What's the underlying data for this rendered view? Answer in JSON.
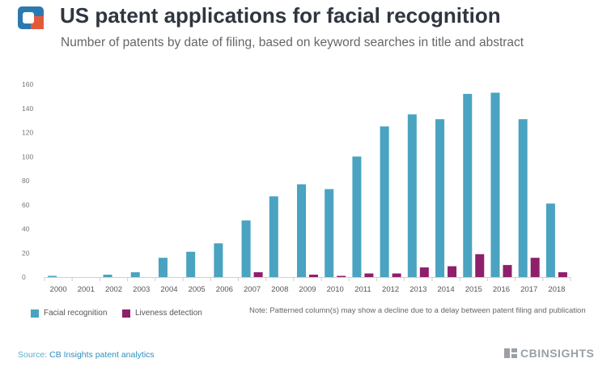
{
  "header": {
    "title": "US patent applications for facial recognition",
    "subtitle": "Number of patents by date of filing, based on keyword searches in title and abstract"
  },
  "chart_data": {
    "type": "bar",
    "title": "US patent applications for facial recognition",
    "subtitle": "Number of patents by date of filing, based on keyword searches in title and abstract",
    "xlabel": "",
    "ylabel": "",
    "ylim": [
      0,
      160
    ],
    "yticks": [
      0,
      20,
      40,
      60,
      80,
      100,
      120,
      140,
      160
    ],
    "grid": false,
    "categories": [
      "2000",
      "2001",
      "2002",
      "2003",
      "2004",
      "2005",
      "2006",
      "2007",
      "2008",
      "2009",
      "2010",
      "2011",
      "2012",
      "2013",
      "2014",
      "2015",
      "2016",
      "2017",
      "2018"
    ],
    "series": [
      {
        "name": "Facial recognition",
        "color": "#4aa3c0",
        "values": [
          1,
          0,
          2,
          4,
          16,
          21,
          28,
          47,
          67,
          77,
          73,
          100,
          125,
          135,
          131,
          152,
          153,
          131,
          61
        ]
      },
      {
        "name": "Liveness detection",
        "color": "#8e1f6a",
        "values": [
          0,
          0,
          0,
          0,
          0,
          0,
          0,
          4,
          0,
          2,
          1,
          3,
          3,
          8,
          9,
          19,
          10,
          16,
          4
        ]
      }
    ],
    "legend_position": "bottom-left",
    "note": "Note: Patterned column(s) may show a decline due to a delay between patent filing and publication"
  },
  "footer": {
    "source_prefix": "Source:",
    "source_link": "CB Insights patent analytics",
    "brand": "CBINSIGHTS"
  },
  "colors": {
    "facial": "#4aa3c0",
    "liveness": "#8e1f6a",
    "logo_blue": "#2a7ab0",
    "logo_red": "#e35a3a"
  }
}
